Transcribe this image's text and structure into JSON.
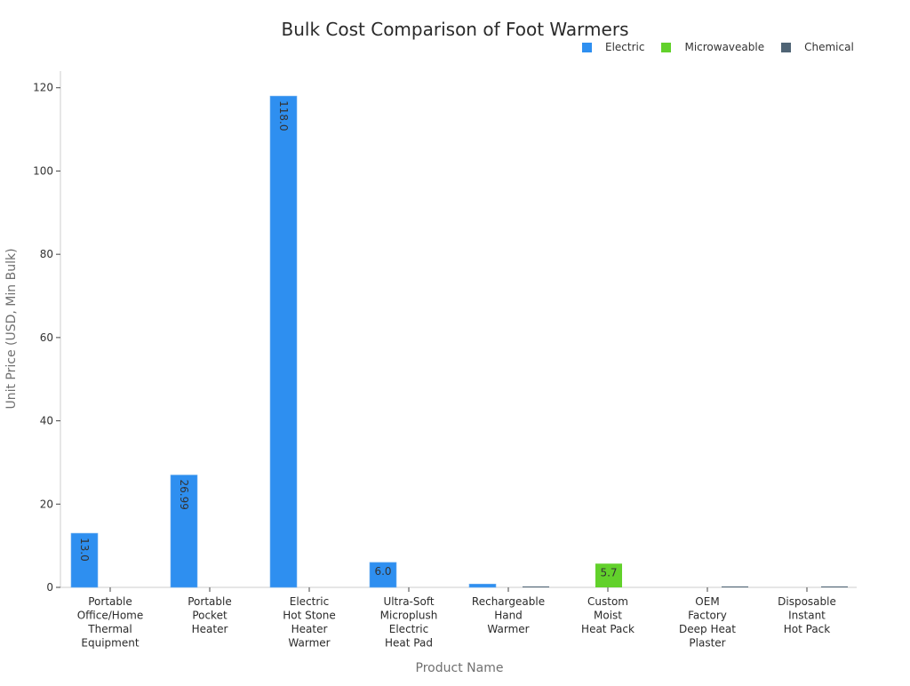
{
  "chart_data": {
    "type": "bar",
    "title": "Bulk Cost Comparison of Foot Warmers",
    "xlabel": "Product Name",
    "ylabel": "Unit Price (USD, Min Bulk)",
    "ylim": [
      0,
      124
    ],
    "yticks": [
      0,
      20,
      40,
      60,
      80,
      100,
      120
    ],
    "grid": false,
    "legend_position": "top-right",
    "categories": [
      [
        "Portable",
        "Office/Home",
        "Thermal",
        "Equipment"
      ],
      [
        "Portable",
        "Pocket",
        "Heater"
      ],
      [
        "Electric",
        "Hot Stone",
        "Heater",
        "Warmer"
      ],
      [
        "Ultra-Soft",
        "Microplush",
        "Electric",
        "Heat Pad"
      ],
      [
        "Rechargeable",
        "Hand",
        "Warmer"
      ],
      [
        "Custom",
        "Moist",
        "Heat Pack"
      ],
      [
        "OEM",
        "Factory",
        "Deep Heat",
        "Plaster"
      ],
      [
        "Disposable",
        "Instant",
        "Hot Pack"
      ]
    ],
    "series": [
      {
        "name": "Electric",
        "color": "#2e8ff0",
        "values": [
          13.0,
          26.99,
          118.0,
          6.0,
          0.8,
          0,
          0,
          0
        ]
      },
      {
        "name": "Microwaveable",
        "color": "#62d12b",
        "values": [
          0,
          0,
          0,
          0,
          0,
          5.7,
          0,
          0
        ]
      },
      {
        "name": "Chemical",
        "color": "#4f6475",
        "values": [
          0,
          0,
          0,
          0,
          0.15,
          0,
          0.05,
          0.03
        ]
      }
    ],
    "data_labels": [
      {
        "series": 0,
        "index": 0,
        "text": "13.0",
        "rotated": true
      },
      {
        "series": 0,
        "index": 1,
        "text": "26.99",
        "rotated": true
      },
      {
        "series": 0,
        "index": 2,
        "text": "118.0",
        "rotated": true
      },
      {
        "series": 0,
        "index": 3,
        "text": "6.0",
        "rotated": false
      },
      {
        "series": 1,
        "index": 5,
        "text": "5.7",
        "rotated": false
      }
    ]
  }
}
